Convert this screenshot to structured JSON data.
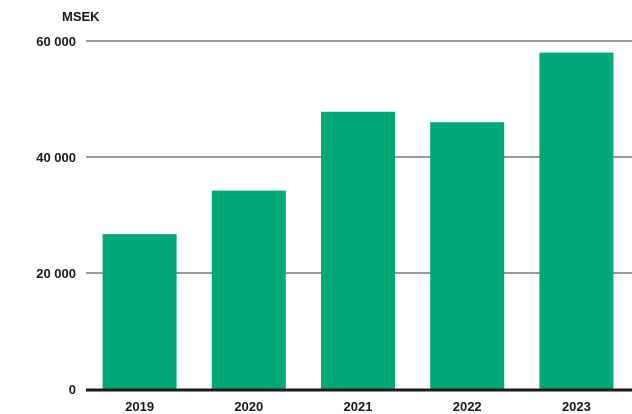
{
  "chart_data": {
    "type": "bar",
    "title": "",
    "unit_label": "MSEK",
    "xlabel": "",
    "ylabel": "",
    "categories": [
      "2019",
      "2020",
      "2021",
      "2022",
      "2023"
    ],
    "values": [
      26700,
      34200,
      47800,
      46000,
      58000
    ],
    "ylim": [
      0,
      60000
    ],
    "yticks": [
      0,
      20000,
      40000,
      60000
    ],
    "ytick_labels": [
      "0",
      "20 000",
      "40 000",
      "60 000"
    ],
    "grid": true,
    "legend": "none",
    "bar_color": "#00a877",
    "grid_color": "#333333"
  }
}
